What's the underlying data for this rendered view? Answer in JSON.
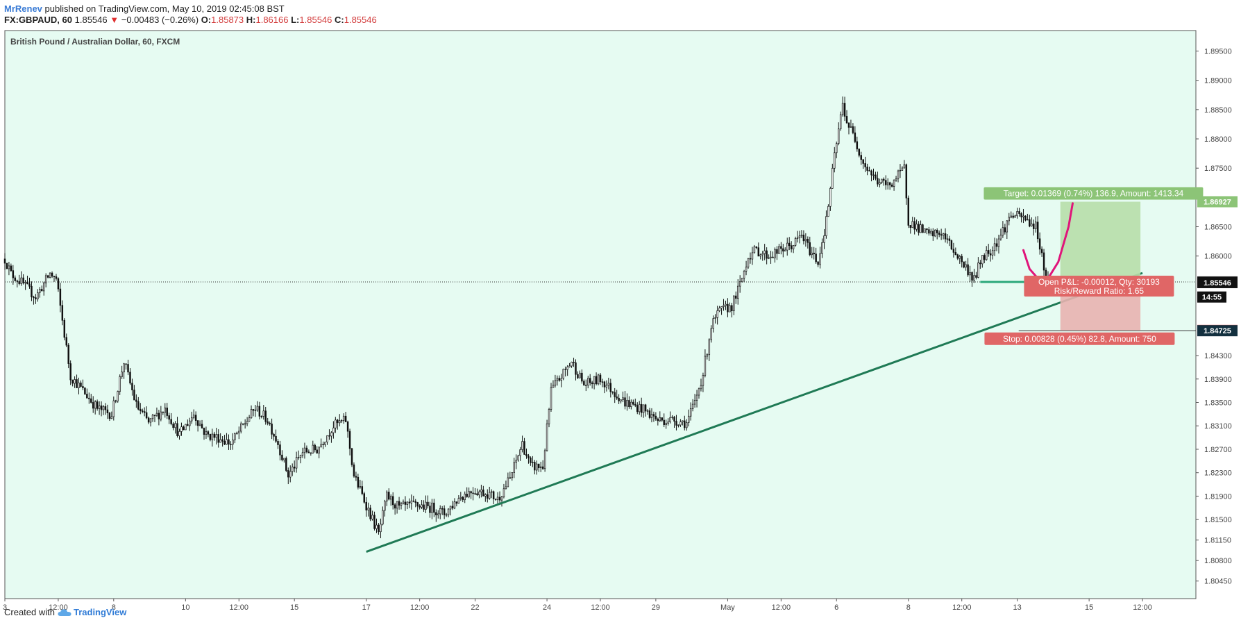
{
  "header": {
    "author": "MrRenev",
    "published": "published on TradingView.com, May 10, 2019 02:45:08 BST"
  },
  "quote": {
    "symbol": "FX:GBPAUD, 60",
    "last": "1.85546",
    "arrow": "▼",
    "change": "−0.00483 (−0.26%)",
    "open_label": "O:",
    "open": "1.85873",
    "high_label": "H:",
    "high": "1.86166",
    "low_label": "L:",
    "low": "1.85546",
    "close_label": "C:",
    "close": "1.85546"
  },
  "footer": {
    "created_with": "Created with",
    "brand": "TradingView"
  },
  "colors": {
    "plot_bg": "#e6fbf2",
    "trendline": "#1f7a55",
    "target_zone": "#b7deaa",
    "stop_zone": "#e8b3b0",
    "target_label": "#8cc477",
    "stop_label": "#e06666",
    "projection": "#e0157a",
    "candle": "#111111"
  },
  "chart_data": {
    "type": "candlestick",
    "title": "British Pound / Australian Dollar, 60, FXCM",
    "ylim": [
      1.8015,
      1.8985
    ],
    "x_index_range": [
      0,
      580
    ],
    "y_ticks": [
      "1.89500",
      "1.89000",
      "1.88500",
      "1.88000",
      "1.87500",
      "1.86500",
      "1.86000",
      "1.84300",
      "1.83900",
      "1.83500",
      "1.83100",
      "1.82700",
      "1.82300",
      "1.81900",
      "1.81500",
      "1.81150",
      "1.80800",
      "1.80450"
    ],
    "y_tick_values": [
      1.895,
      1.89,
      1.885,
      1.88,
      1.875,
      1.865,
      1.86,
      1.843,
      1.839,
      1.835,
      1.831,
      1.827,
      1.823,
      1.819,
      1.815,
      1.8115,
      1.808,
      1.8045
    ],
    "x_ticks": [
      {
        "label": "3",
        "i": 0
      },
      {
        "label": "12:00",
        "i": 26
      },
      {
        "label": "8",
        "i": 53
      },
      {
        "label": "10",
        "i": 88
      },
      {
        "label": "12:00",
        "i": 114
      },
      {
        "label": "15",
        "i": 141
      },
      {
        "label": "17",
        "i": 176
      },
      {
        "label": "12:00",
        "i": 202
      },
      {
        "label": "22",
        "i": 229
      },
      {
        "label": "24",
        "i": 264
      },
      {
        "label": "12:00",
        "i": 290
      },
      {
        "label": "29",
        "i": 317
      },
      {
        "label": "May",
        "i": 352
      },
      {
        "label": "12:00",
        "i": 378
      },
      {
        "label": "6",
        "i": 405
      },
      {
        "label": "8",
        "i": 440
      },
      {
        "label": "12:00",
        "i": 466
      },
      {
        "label": "13",
        "i": 493
      },
      {
        "label": "15",
        "i": 528
      },
      {
        "label": "12:00",
        "i": 554
      }
    ],
    "price_anchors": [
      [
        0,
        1.8595
      ],
      [
        3,
        1.857
      ],
      [
        8,
        1.8555
      ],
      [
        15,
        1.853
      ],
      [
        22,
        1.857
      ],
      [
        25,
        1.856
      ],
      [
        28,
        1.849
      ],
      [
        32,
        1.8395
      ],
      [
        38,
        1.837
      ],
      [
        45,
        1.834
      ],
      [
        52,
        1.833
      ],
      [
        58,
        1.842
      ],
      [
        64,
        1.8345
      ],
      [
        70,
        1.8315
      ],
      [
        78,
        1.834
      ],
      [
        85,
        1.8295
      ],
      [
        92,
        1.833
      ],
      [
        98,
        1.8295
      ],
      [
        104,
        1.829
      ],
      [
        110,
        1.828
      ],
      [
        116,
        1.831
      ],
      [
        122,
        1.834
      ],
      [
        128,
        1.832
      ],
      [
        133,
        1.828
      ],
      [
        138,
        1.8225
      ],
      [
        145,
        1.8265
      ],
      [
        152,
        1.827
      ],
      [
        160,
        1.831
      ],
      [
        166,
        1.832
      ],
      [
        170,
        1.8225
      ],
      [
        176,
        1.8175
      ],
      [
        182,
        1.8125
      ],
      [
        186,
        1.819
      ],
      [
        192,
        1.817
      ],
      [
        200,
        1.8175
      ],
      [
        208,
        1.817
      ],
      [
        214,
        1.816
      ],
      [
        222,
        1.819
      ],
      [
        228,
        1.82
      ],
      [
        235,
        1.8195
      ],
      [
        240,
        1.8185
      ],
      [
        246,
        1.822
      ],
      [
        252,
        1.828
      ],
      [
        256,
        1.824
      ],
      [
        262,
        1.824
      ],
      [
        266,
        1.837
      ],
      [
        272,
        1.84
      ],
      [
        276,
        1.842
      ],
      [
        282,
        1.838
      ],
      [
        290,
        1.839
      ],
      [
        296,
        1.837
      ],
      [
        302,
        1.835
      ],
      [
        310,
        1.834
      ],
      [
        318,
        1.832
      ],
      [
        326,
        1.832
      ],
      [
        332,
        1.8315
      ],
      [
        336,
        1.835
      ],
      [
        340,
        1.84
      ],
      [
        344,
        1.848
      ],
      [
        348,
        1.8505
      ],
      [
        354,
        1.8515
      ],
      [
        358,
        1.855
      ],
      [
        362,
        1.86
      ],
      [
        366,
        1.861
      ],
      [
        372,
        1.86
      ],
      [
        378,
        1.861
      ],
      [
        384,
        1.862
      ],
      [
        388,
        1.8635
      ],
      [
        392,
        1.861
      ],
      [
        396,
        1.859
      ],
      [
        400,
        1.866
      ],
      [
        404,
        1.877
      ],
      [
        408,
        1.886
      ],
      [
        410,
        1.883
      ],
      [
        414,
        1.88
      ],
      [
        418,
        1.876
      ],
      [
        424,
        1.873
      ],
      [
        430,
        1.872
      ],
      [
        436,
        1.874
      ],
      [
        438,
        1.875
      ],
      [
        440,
        1.866
      ],
      [
        444,
        1.865
      ],
      [
        450,
        1.8635
      ],
      [
        456,
        1.864
      ],
      [
        462,
        1.861
      ],
      [
        468,
        1.858
      ],
      [
        472,
        1.856
      ],
      [
        476,
        1.86
      ],
      [
        480,
        1.861
      ],
      [
        484,
        1.863
      ],
      [
        490,
        1.867
      ],
      [
        496,
        1.8665
      ],
      [
        502,
        1.865
      ],
      [
        504,
        1.862
      ],
      [
        506,
        1.858
      ],
      [
        508,
        1.8555
      ]
    ],
    "trendline": {
      "from": [
        176,
        1.8095
      ],
      "to": [
        554,
        1.8571
      ]
    },
    "horizontal_levels": [
      {
        "label": "1.85558",
        "value": 1.85558,
        "style": "dotted"
      },
      {
        "label": "1.84725",
        "value": 1.84725,
        "style": "solid"
      }
    ],
    "support_line": {
      "value": 1.85558,
      "from_i": 475,
      "to_i": 508
    },
    "projection_curve": [
      [
        496,
        1.861
      ],
      [
        499,
        1.8578
      ],
      [
        503,
        1.8562
      ],
      [
        507,
        1.8556
      ],
      [
        513,
        1.859
      ],
      [
        518,
        1.865
      ],
      [
        520,
        1.869
      ]
    ],
    "position": {
      "side": "long",
      "entry": 1.85558,
      "target": 1.86927,
      "stop": 1.8473,
      "start_i": 514,
      "end_i": 553,
      "target_label": "Target: 0.01369 (0.74%) 136.9, Amount: 1413.34",
      "open_pnl_label": "Open P&L: -0.00012, Qty: 30193",
      "rr_label": "Risk/Reward Ratio: 1.65",
      "stop_label": "Stop: 0.00828 (0.45%) 82.8, Amount: 750"
    },
    "price_tags": [
      {
        "label": "1.86927",
        "value": 1.86927,
        "kind": "target"
      },
      {
        "label": "1.85558",
        "value": 1.85558,
        "kind": "level"
      },
      {
        "label": "1.85546",
        "value": 1.85546,
        "kind": "last"
      },
      {
        "label": "14:55",
        "value": 1.853,
        "kind": "countdown"
      },
      {
        "label": "1.84730",
        "value": 1.8473,
        "kind": "stop"
      },
      {
        "label": "1.84725",
        "value": 1.84725,
        "kind": "level-dark"
      }
    ]
  }
}
